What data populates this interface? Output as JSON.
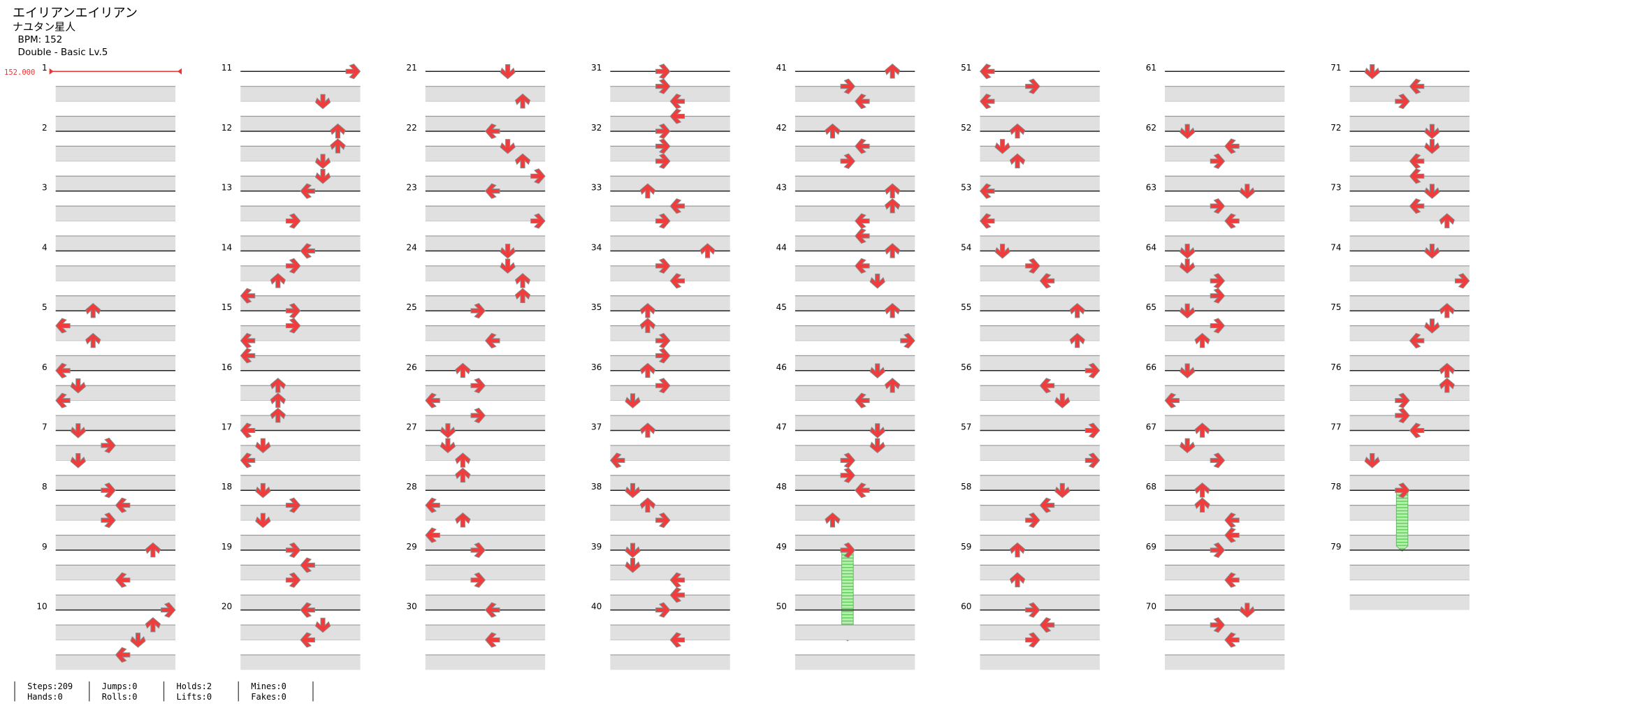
{
  "header": {
    "title": "エイリアンエイリアン",
    "subtitle": "ナユタン星人",
    "bpm": "BPM: 152",
    "difficulty": "Double - Basic Lv.5"
  },
  "bpm_marker": "152.000",
  "measures": [
    {
      "number": 1,
      "notes": []
    },
    {
      "number": 2,
      "notes": []
    },
    {
      "number": 3,
      "notes": []
    },
    {
      "number": 4,
      "notes": []
    },
    {
      "number": 5,
      "notes": [
        [
          0,
          2
        ],
        [
          1,
          0
        ],
        [
          2,
          2
        ]
      ]
    },
    {
      "number": 6,
      "notes": [
        [
          0,
          0
        ],
        [
          1,
          1
        ],
        [
          2,
          0
        ]
      ]
    },
    {
      "number": 7,
      "notes": [
        [
          0,
          1
        ],
        [
          1,
          3
        ],
        [
          2,
          1
        ]
      ]
    },
    {
      "number": 8,
      "notes": [
        [
          0,
          3
        ],
        [
          1,
          4
        ],
        [
          2,
          3
        ]
      ]
    },
    {
      "number": 9,
      "notes": [
        [
          0,
          6
        ],
        [
          2,
          4
        ]
      ]
    },
    {
      "number": 10,
      "notes": [
        [
          0,
          7
        ],
        [
          1,
          6
        ],
        [
          2,
          5
        ],
        [
          3,
          4
        ]
      ]
    },
    {
      "number": 11,
      "notes": [
        [
          0,
          7
        ],
        [
          2,
          5
        ]
      ]
    },
    {
      "number": 12,
      "notes": [
        [
          0,
          6
        ],
        [
          1,
          6
        ],
        [
          2,
          5
        ],
        [
          3,
          5
        ]
      ]
    },
    {
      "number": 13,
      "notes": [
        [
          0,
          4
        ],
        [
          2,
          3
        ]
      ]
    },
    {
      "number": 14,
      "notes": [
        [
          0,
          4
        ],
        [
          1,
          3
        ],
        [
          2,
          2
        ],
        [
          3,
          0
        ]
      ]
    },
    {
      "number": 15,
      "notes": [
        [
          0,
          3
        ],
        [
          1,
          3
        ],
        [
          2,
          0
        ],
        [
          3,
          0
        ]
      ]
    },
    {
      "number": 16,
      "notes": [
        [
          1,
          2
        ],
        [
          2,
          2
        ],
        [
          3,
          2
        ]
      ]
    },
    {
      "number": 17,
      "notes": [
        [
          0,
          0
        ],
        [
          1,
          1
        ],
        [
          2,
          0
        ]
      ]
    },
    {
      "number": 18,
      "notes": [
        [
          0,
          1
        ],
        [
          1,
          3
        ],
        [
          2,
          1
        ]
      ]
    },
    {
      "number": 19,
      "notes": [
        [
          0,
          3
        ],
        [
          1,
          4
        ],
        [
          2,
          3
        ]
      ]
    },
    {
      "number": 20,
      "notes": [
        [
          0,
          4
        ],
        [
          1,
          5
        ],
        [
          2,
          4
        ]
      ]
    },
    {
      "number": 21,
      "notes": [
        [
          0,
          5
        ],
        [
          2,
          6
        ]
      ]
    },
    {
      "number": 22,
      "notes": [
        [
          0,
          4
        ],
        [
          1,
          5
        ],
        [
          2,
          6
        ],
        [
          3,
          7
        ]
      ]
    },
    {
      "number": 23,
      "notes": [
        [
          0,
          4
        ],
        [
          2,
          7
        ]
      ]
    },
    {
      "number": 24,
      "notes": [
        [
          0,
          5
        ],
        [
          1,
          5
        ],
        [
          2,
          6
        ],
        [
          3,
          6
        ]
      ]
    },
    {
      "number": 25,
      "notes": [
        [
          0,
          3
        ],
        [
          2,
          4
        ]
      ]
    },
    {
      "number": 26,
      "notes": [
        [
          0,
          2
        ],
        [
          1,
          3
        ],
        [
          2,
          0
        ],
        [
          3,
          3
        ]
      ]
    },
    {
      "number": 27,
      "notes": [
        [
          0,
          1
        ],
        [
          1,
          1
        ],
        [
          2,
          2
        ],
        [
          3,
          2
        ]
      ]
    },
    {
      "number": 28,
      "notes": [
        [
          1,
          0
        ],
        [
          2,
          2
        ],
        [
          3,
          0
        ]
      ]
    },
    {
      "number": 29,
      "notes": [
        [
          0,
          3
        ],
        [
          2,
          3
        ]
      ]
    },
    {
      "number": 30,
      "notes": [
        [
          0,
          4
        ],
        [
          2,
          4
        ]
      ]
    },
    {
      "number": 31,
      "notes": [
        [
          0,
          3
        ],
        [
          1,
          3
        ],
        [
          2,
          4
        ],
        [
          3,
          4
        ]
      ]
    },
    {
      "number": 32,
      "notes": [
        [
          0,
          3
        ],
        [
          1,
          3
        ],
        [
          2,
          3
        ]
      ]
    },
    {
      "number": 33,
      "notes": [
        [
          0,
          2
        ],
        [
          1,
          4
        ],
        [
          2,
          3
        ]
      ]
    },
    {
      "number": 34,
      "notes": [
        [
          0,
          6
        ],
        [
          1,
          3
        ],
        [
          2,
          4
        ]
      ]
    },
    {
      "number": 35,
      "notes": [
        [
          0,
          2
        ],
        [
          1,
          2
        ],
        [
          2,
          3
        ],
        [
          3,
          3
        ]
      ]
    },
    {
      "number": 36,
      "notes": [
        [
          0,
          2
        ],
        [
          1,
          3
        ],
        [
          2,
          1
        ]
      ]
    },
    {
      "number": 37,
      "notes": [
        [
          0,
          2
        ],
        [
          2,
          0
        ]
      ]
    },
    {
      "number": 38,
      "notes": [
        [
          0,
          1
        ],
        [
          1,
          2
        ],
        [
          2,
          3
        ]
      ]
    },
    {
      "number": 39,
      "notes": [
        [
          0,
          1
        ],
        [
          1,
          1
        ],
        [
          2,
          4
        ],
        [
          3,
          4
        ]
      ]
    },
    {
      "number": 40,
      "notes": [
        [
          0,
          3
        ],
        [
          2,
          4
        ]
      ]
    },
    {
      "number": 41,
      "notes": [
        [
          0,
          6
        ],
        [
          1,
          3
        ],
        [
          2,
          4
        ]
      ]
    },
    {
      "number": 42,
      "notes": [
        [
          0,
          2
        ],
        [
          1,
          4
        ],
        [
          2,
          3
        ]
      ]
    },
    {
      "number": 43,
      "notes": [
        [
          0,
          6
        ],
        [
          1,
          6
        ],
        [
          2,
          4
        ],
        [
          3,
          4
        ]
      ]
    },
    {
      "number": 44,
      "notes": [
        [
          0,
          6
        ],
        [
          1,
          4
        ],
        [
          2,
          5
        ]
      ]
    },
    {
      "number": 45,
      "notes": [
        [
          0,
          6
        ],
        [
          2,
          7
        ]
      ]
    },
    {
      "number": 46,
      "notes": [
        [
          0,
          5
        ],
        [
          1,
          6
        ],
        [
          2,
          4
        ]
      ]
    },
    {
      "number": 47,
      "notes": [
        [
          0,
          5
        ],
        [
          1,
          5
        ],
        [
          2,
          3
        ],
        [
          3,
          3
        ]
      ]
    },
    {
      "number": 48,
      "notes": [
        [
          0,
          4
        ],
        [
          2,
          2
        ]
      ]
    },
    {
      "number": 49,
      "notes": [],
      "holds": [
        [
          0,
          3,
          6
        ]
      ]
    },
    {
      "number": 50,
      "notes": []
    },
    {
      "number": 51,
      "notes": [
        [
          0,
          0
        ],
        [
          1,
          3
        ],
        [
          2,
          0
        ]
      ]
    },
    {
      "number": 52,
      "notes": [
        [
          0,
          2
        ],
        [
          1,
          1
        ],
        [
          2,
          2
        ]
      ]
    },
    {
      "number": 53,
      "notes": [
        [
          0,
          0
        ],
        [
          2,
          0
        ]
      ]
    },
    {
      "number": 54,
      "notes": [
        [
          0,
          1
        ],
        [
          1,
          3
        ],
        [
          2,
          4
        ]
      ]
    },
    {
      "number": 55,
      "notes": [
        [
          0,
          6
        ],
        [
          2,
          6
        ]
      ]
    },
    {
      "number": 56,
      "notes": [
        [
          0,
          7
        ],
        [
          1,
          4
        ],
        [
          2,
          5
        ]
      ]
    },
    {
      "number": 57,
      "notes": [
        [
          0,
          7
        ],
        [
          2,
          7
        ]
      ]
    },
    {
      "number": 58,
      "notes": [
        [
          0,
          5
        ],
        [
          1,
          4
        ],
        [
          2,
          3
        ]
      ]
    },
    {
      "number": 59,
      "notes": [
        [
          0,
          2
        ],
        [
          2,
          2
        ]
      ]
    },
    {
      "number": 60,
      "notes": [
        [
          0,
          3
        ],
        [
          1,
          4
        ],
        [
          2,
          3
        ]
      ]
    },
    {
      "number": 61,
      "notes": []
    },
    {
      "number": 62,
      "notes": [
        [
          0,
          1
        ],
        [
          1,
          4
        ],
        [
          2,
          3
        ]
      ]
    },
    {
      "number": 63,
      "notes": [
        [
          0,
          5
        ],
        [
          1,
          3
        ],
        [
          2,
          4
        ]
      ]
    },
    {
      "number": 64,
      "notes": [
        [
          0,
          1
        ],
        [
          1,
          1
        ],
        [
          2,
          3
        ],
        [
          3,
          3
        ]
      ]
    },
    {
      "number": 65,
      "notes": [
        [
          0,
          1
        ],
        [
          1,
          3
        ],
        [
          2,
          2
        ]
      ]
    },
    {
      "number": 66,
      "notes": [
        [
          0,
          1
        ],
        [
          2,
          0
        ]
      ]
    },
    {
      "number": 67,
      "notes": [
        [
          0,
          2
        ],
        [
          1,
          1
        ],
        [
          2,
          3
        ]
      ]
    },
    {
      "number": 68,
      "notes": [
        [
          0,
          2
        ],
        [
          1,
          2
        ],
        [
          2,
          4
        ],
        [
          3,
          4
        ]
      ]
    },
    {
      "number": 69,
      "notes": [
        [
          0,
          3
        ],
        [
          2,
          4
        ]
      ]
    },
    {
      "number": 70,
      "notes": [
        [
          0,
          5
        ],
        [
          1,
          3
        ],
        [
          2,
          4
        ]
      ]
    },
    {
      "number": 71,
      "notes": [
        [
          0,
          1
        ],
        [
          1,
          4
        ],
        [
          2,
          3
        ]
      ]
    },
    {
      "number": 72,
      "notes": [
        [
          0,
          5
        ],
        [
          1,
          5
        ],
        [
          2,
          4
        ],
        [
          3,
          4
        ]
      ]
    },
    {
      "number": 73,
      "notes": [
        [
          0,
          5
        ],
        [
          1,
          4
        ],
        [
          2,
          6
        ]
      ]
    },
    {
      "number": 74,
      "notes": [
        [
          0,
          5
        ],
        [
          2,
          7
        ]
      ]
    },
    {
      "number": 75,
      "notes": [
        [
          0,
          6
        ],
        [
          1,
          5
        ],
        [
          2,
          4
        ]
      ]
    },
    {
      "number": 76,
      "notes": [
        [
          0,
          6
        ],
        [
          1,
          6
        ],
        [
          2,
          3
        ],
        [
          3,
          3
        ]
      ]
    },
    {
      "number": 77,
      "notes": [
        [
          0,
          4
        ],
        [
          2,
          1
        ]
      ]
    },
    {
      "number": 78,
      "notes": [],
      "holds": [
        [
          0,
          3,
          4
        ]
      ]
    },
    {
      "number": 79,
      "notes": []
    }
  ],
  "stats": [
    [
      "Steps:209",
      "Hands:0"
    ],
    [
      "Jumps:0",
      "Rolls:0"
    ],
    [
      "Holds:2",
      "Lifts:0"
    ],
    [
      "Mines:0",
      "Fakes:0"
    ]
  ]
}
